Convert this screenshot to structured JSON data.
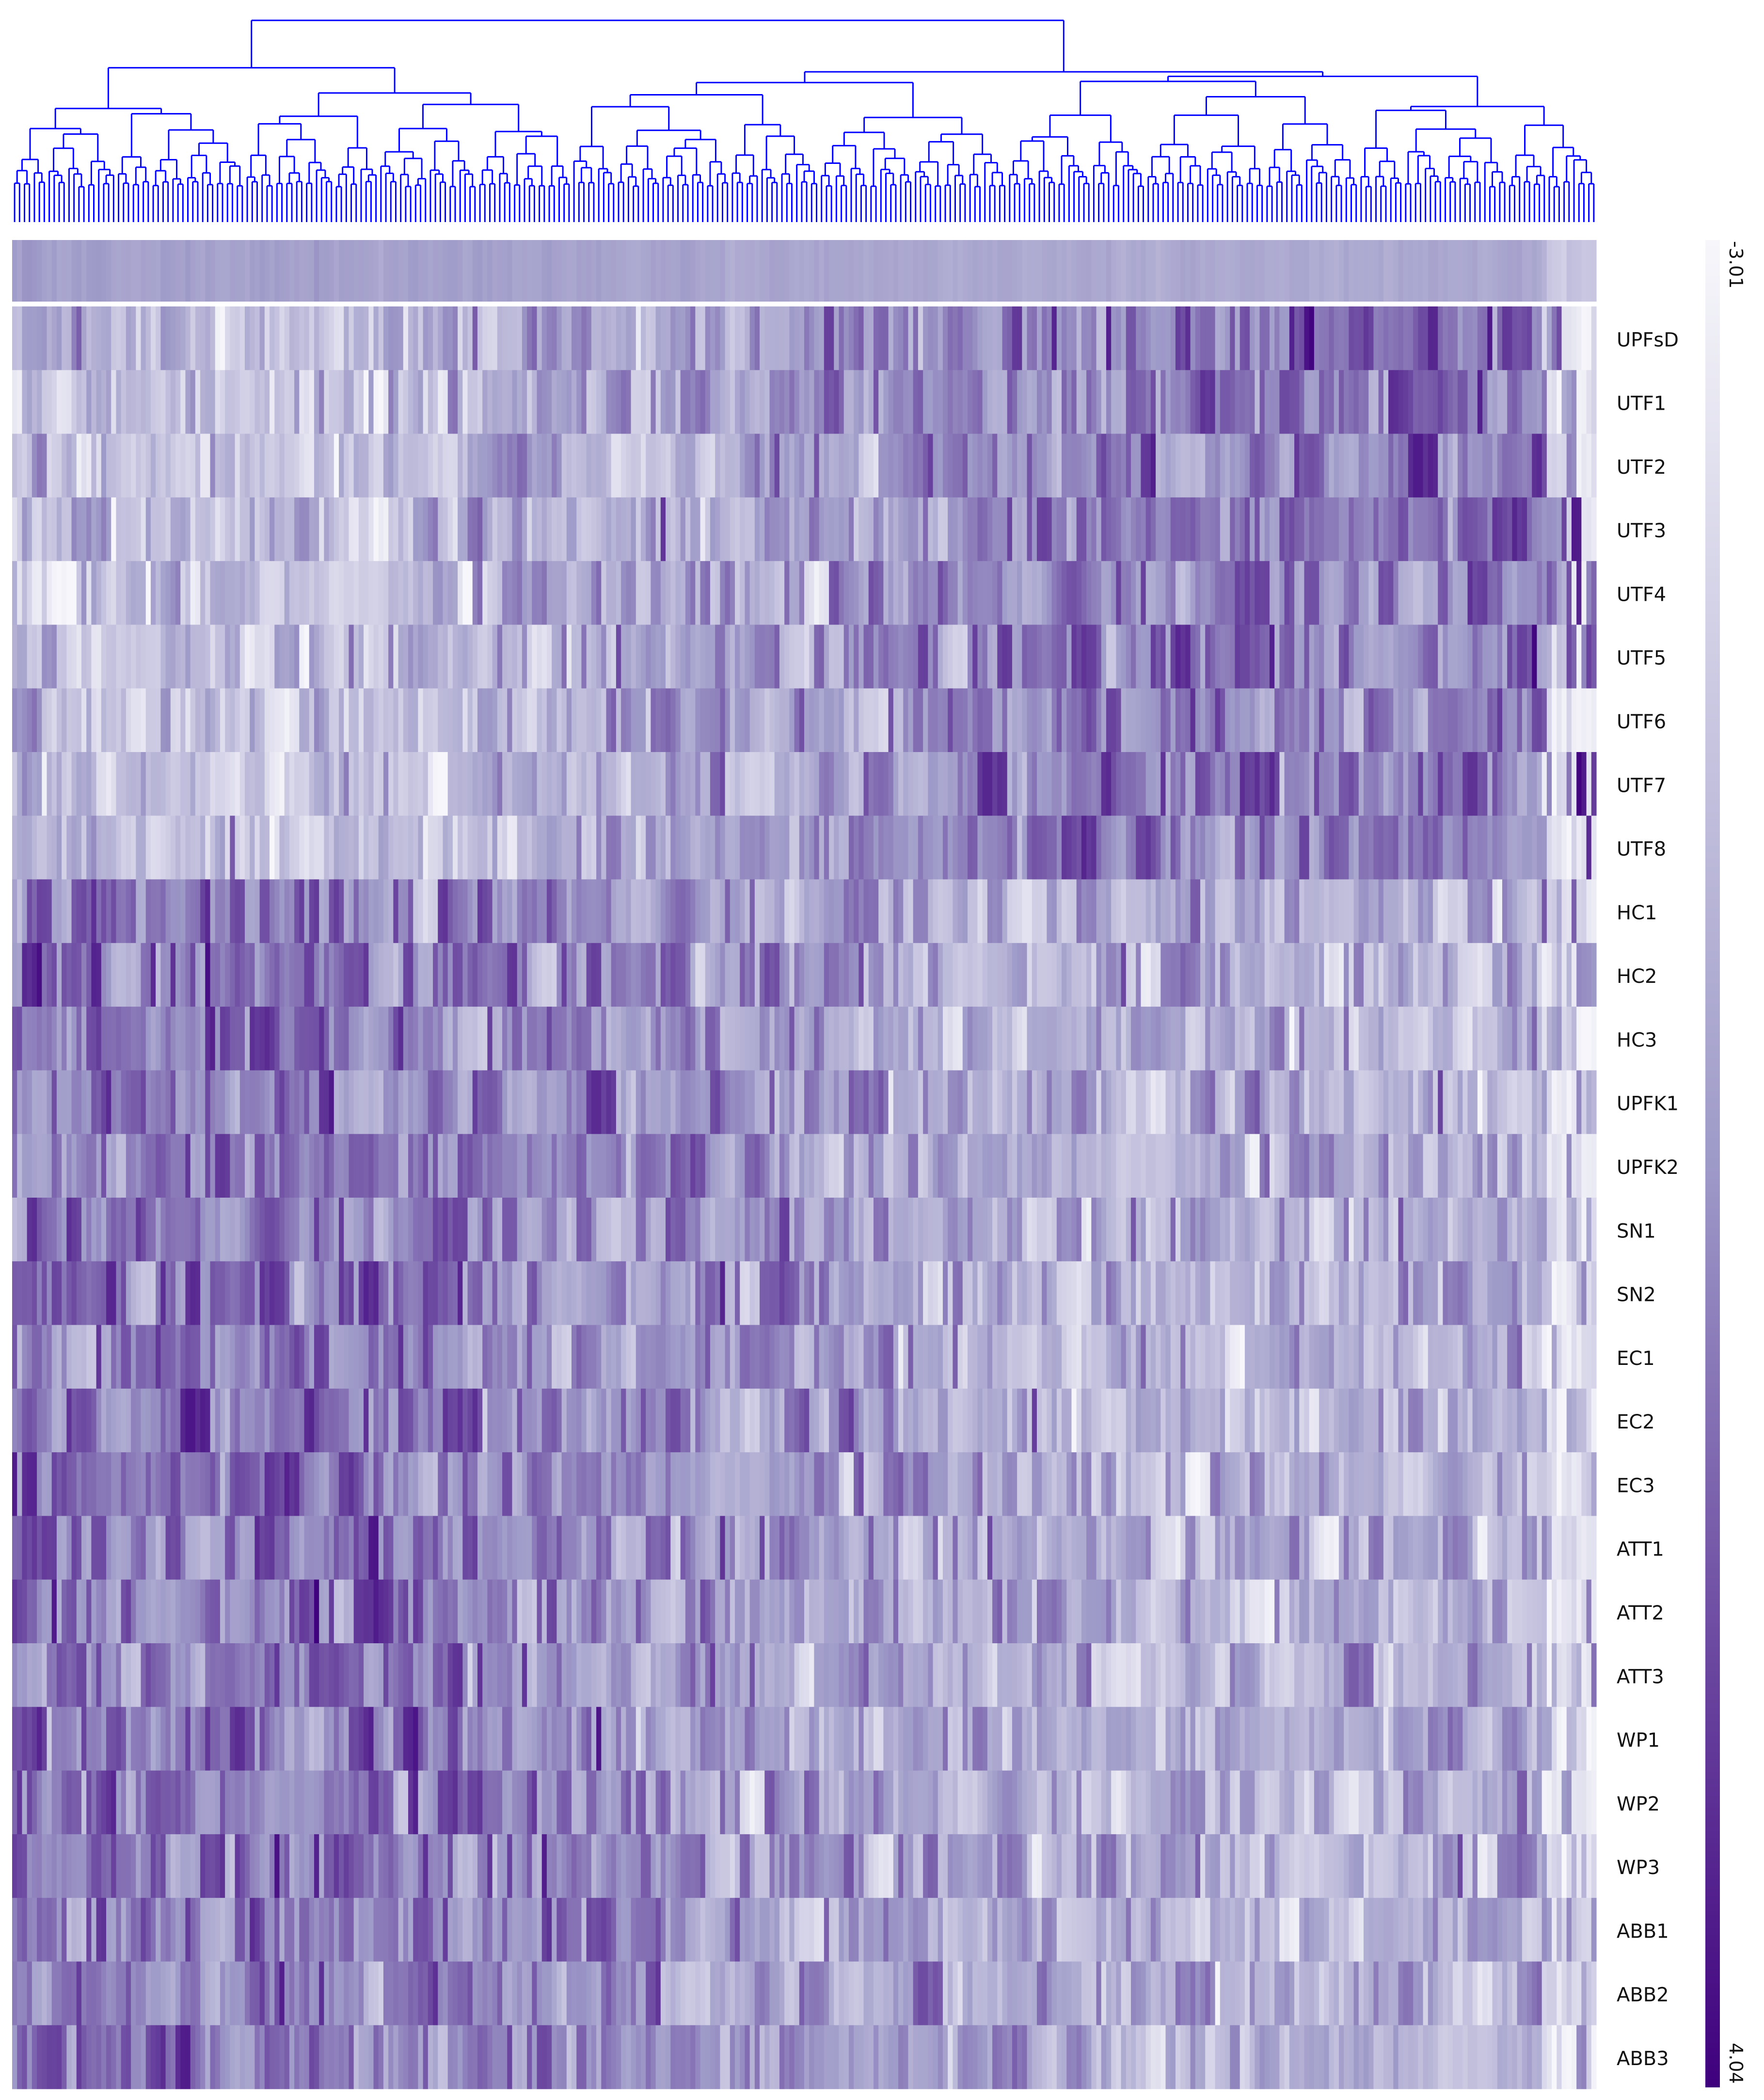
{
  "chart_data": {
    "type": "heatmap",
    "title": "",
    "xlabel": "",
    "ylabel": "",
    "rows": [
      "UPFsD",
      "UTF1",
      "UTF2",
      "UTF3",
      "UTF4",
      "UTF5",
      "UTF6",
      "UTF7",
      "UTF8",
      "HC1",
      "HC2",
      "HC3",
      "UPFK1",
      "UPFK2",
      "SN1",
      "SN2",
      "EC1",
      "EC2",
      "EC3",
      "ATT1",
      "ATT2",
      "ATT3",
      "WP1",
      "WP2",
      "WP3",
      "ABB1",
      "ABB2",
      "ABB3"
    ],
    "column_count": 320,
    "has_column_dendrogram": true,
    "has_column_summary_bar": true,
    "color_scale": {
      "min": -3.01,
      "max": 4.04,
      "min_label": "-3.01",
      "max_label": "4.04",
      "min_color": "#f7f7fb",
      "max_color": "#3f007d",
      "orientation": "vertical"
    },
    "dendrogram_color": "#0000ff",
    "column_groups": [
      {
        "rows": [
          "UPFsD",
          "UTF1",
          "UTF2",
          "UTF3",
          "UTF4",
          "UTF5",
          "UTF6",
          "UTF7",
          "UTF8"
        ],
        "left_mean": -0.8,
        "right_mean": 1.2
      },
      {
        "rows": [
          "HC1",
          "HC2",
          "HC3",
          "UPFK1",
          "UPFK2",
          "SN1",
          "SN2",
          "EC1",
          "EC2",
          "EC3",
          "ATT1",
          "ATT2",
          "ATT3",
          "WP1",
          "WP2",
          "WP3",
          "ABB1",
          "ABB2",
          "ABB3"
        ],
        "left_mean": 1.3,
        "right_mean": -0.3
      }
    ]
  }
}
